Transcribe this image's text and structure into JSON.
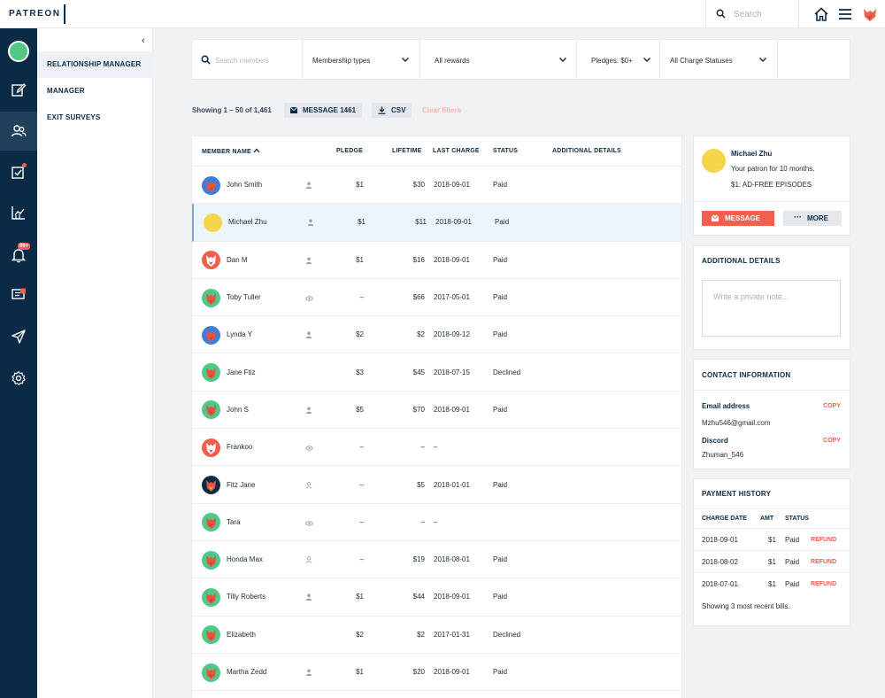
{
  "brand": {
    "logo_text": "PATREON",
    "accent": "#f0604d",
    "navy": "#0b2a45"
  },
  "topbar": {
    "search_placeholder": "Search",
    "icons": [
      "search-icon",
      "home-icon",
      "hamburger-menu-icon",
      "creator-avatar-icon"
    ]
  },
  "rail": {
    "items": [
      "avatar",
      "pencil-icon",
      "users-icon",
      "checklist-icon",
      "stats-icon",
      "notifications-icon",
      "messages-icon",
      "send-icon",
      "settings-icon"
    ],
    "notification_badge": "99+"
  },
  "subnav": {
    "items": [
      "RELATIONSHIP MANAGER",
      "MANAGER",
      "EXIT SURVEYS"
    ]
  },
  "filters": {
    "search_placeholder": "Search members",
    "membership": "Membership types",
    "rewards": "All rewards",
    "pledges": "Pledges: $0+",
    "charge": "All Charge Statuses"
  },
  "toolbar": {
    "showing": "Showing 1 – 50 of 1,461",
    "message_label": "MESSAGE 1461",
    "csv_label": "CSV",
    "clear_label": "Clear filters"
  },
  "table": {
    "headers": {
      "name": "MEMBER NAME",
      "pledge": "PLEDGE",
      "lifetime": "LIFETIME",
      "last_charge": "LAST CHARGE",
      "status": "STATUS",
      "details": "ADDITIONAL DETAILS"
    },
    "rows": [
      {
        "name": "John Smith",
        "pledge": "$1",
        "lifetime": "$30",
        "last": "2018-09-01",
        "status": "Paid",
        "avatar": "#3f7ed8",
        "icon": "person-icon"
      },
      {
        "name": "Michael Zhu",
        "pledge": "$1",
        "lifetime": "$11",
        "last": "2018-09-01",
        "status": "Paid",
        "avatar": "#f7d54a",
        "icon": "person-icon"
      },
      {
        "name": "Dan M",
        "pledge": "$1",
        "lifetime": "$16",
        "last": "2018-09-01",
        "status": "Paid",
        "avatar": "#f0604d",
        "icon": "person-icon"
      },
      {
        "name": "Toby Tuller",
        "pledge": "–",
        "lifetime": "$66",
        "last": "2017-05-01",
        "status": "Paid",
        "avatar": "#52c787",
        "icon": "eye-icon"
      },
      {
        "name": "Lynda Y",
        "pledge": "$2",
        "lifetime": "$2",
        "last": "2018-09-12",
        "status": "Paid",
        "avatar": "#3f7ed8",
        "icon": "person-icon"
      },
      {
        "name": "Jane Ftiz",
        "pledge": "$3",
        "lifetime": "$45",
        "last": "2018-07-15",
        "status": "Declined",
        "avatar": "#52c787",
        "icon": ""
      },
      {
        "name": "John S",
        "pledge": "$5",
        "lifetime": "$70",
        "last": "2018-09-01",
        "status": "Paid",
        "avatar": "#52c787",
        "icon": "person-icon"
      },
      {
        "name": "Frankoo",
        "pledge": "–",
        "lifetime": "–",
        "last": "–",
        "status": "",
        "avatar": "#f0604d",
        "icon": "eye-icon"
      },
      {
        "name": "Fitz Jane",
        "pledge": "–",
        "lifetime": "$5",
        "last": "2018-01-01",
        "status": "Paid",
        "avatar": "#0b2a45",
        "icon": "person-outline-icon"
      },
      {
        "name": "Tara",
        "pledge": "–",
        "lifetime": "–",
        "last": "–",
        "status": "",
        "avatar": "#52c787",
        "icon": "eye-icon"
      },
      {
        "name": "Honda Max",
        "pledge": "–",
        "lifetime": "$19",
        "last": "2018-08-01",
        "status": "Paid",
        "avatar": "#52c787",
        "icon": "person-outline-icon"
      },
      {
        "name": "Tilly Roberts",
        "pledge": "$1",
        "lifetime": "$44",
        "last": "2018-09-01",
        "status": "Paid",
        "avatar": "#52c787",
        "icon": "person-icon"
      },
      {
        "name": "Elizabeth",
        "pledge": "$2",
        "lifetime": "$2",
        "last": "2017-01-31",
        "status": "Declined",
        "avatar": "#52c787",
        "icon": ""
      },
      {
        "name": "Martha Zedd",
        "pledge": "$1",
        "lifetime": "$20",
        "last": "2018-09-01",
        "status": "Paid",
        "avatar": "#52c787",
        "icon": "person-icon"
      }
    ]
  },
  "profile": {
    "name": "Michael Zhu",
    "tenure": "Your patron for 10 months.",
    "tier": "$1: AD-FREE EPISODES",
    "message_label": "MESSAGE",
    "more_label": "MORE"
  },
  "additional": {
    "title": "ADDITIONAL DETAILS",
    "placeholder": "Write a private note..."
  },
  "contact": {
    "title": "CONTACT INFORMATION",
    "email_label": "Email address",
    "email": "Mzhu546@gmail.com",
    "discord_label": "Discord",
    "discord": "Zhuman_546",
    "copy_label": "COPY"
  },
  "payments": {
    "title": "PAYMENT HISTORY",
    "headers": {
      "date": "CHARGE DATE",
      "amt": "AMT",
      "status": "STATUS"
    },
    "rows": [
      {
        "date": "2018-09-01",
        "amt": "$1",
        "status": "Paid",
        "action": "REFUND"
      },
      {
        "date": "2018-08-02",
        "amt": "$1",
        "status": "Paid",
        "action": "REFUND"
      },
      {
        "date": "2018-07-01",
        "amt": "$1",
        "status": "Paid",
        "action": "REFUND"
      }
    ],
    "footer": "Showing 3 most recent bills."
  }
}
